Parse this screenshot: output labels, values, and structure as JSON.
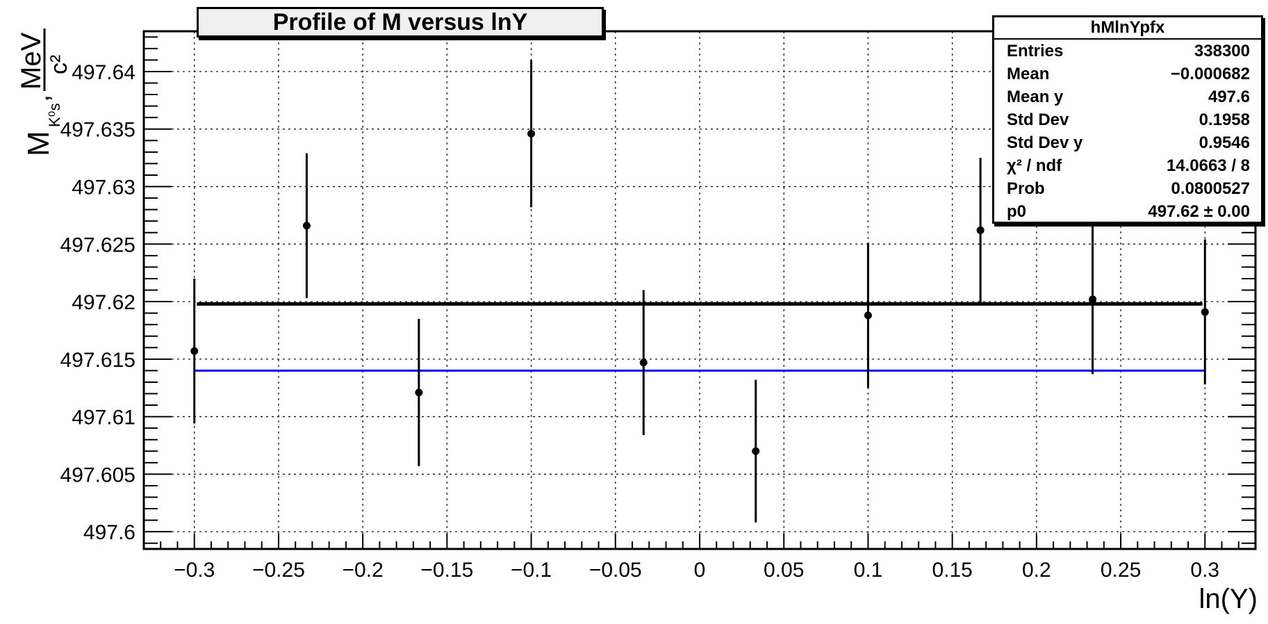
{
  "chart_data": {
    "type": "scatter",
    "title": "Profile of M versus lnY",
    "xlabel": "ln(Y)",
    "ylabel": {
      "main": "M",
      "subscript": "K⁰s",
      "unit_num": "MeV",
      "unit_den": "c²",
      "separator": ","
    },
    "xlim": [
      -0.33,
      0.33
    ],
    "ylim": [
      497.5985,
      497.6435
    ],
    "x_ticks": [
      -0.3,
      -0.25,
      -0.2,
      -0.15,
      -0.1,
      -0.05,
      0,
      0.05,
      0.1,
      0.15,
      0.2,
      0.25,
      0.3
    ],
    "x_tick_labels": [
      "−0.3",
      "−0.25",
      "−0.2",
      "−0.15",
      "−0.1",
      "−0.05",
      "0",
      "0.05",
      "0.1",
      "0.15",
      "0.2",
      "0.25",
      "0.3"
    ],
    "y_ticks": [
      497.6,
      497.605,
      497.61,
      497.615,
      497.62,
      497.625,
      497.63,
      497.635,
      497.64
    ],
    "y_tick_labels": [
      "497.6",
      "497.605",
      "497.61",
      "497.615",
      "497.62",
      "497.625",
      "497.63",
      "497.635",
      "497.64"
    ],
    "grid": true,
    "points": [
      {
        "x": -0.3,
        "y": 497.6157,
        "err": 0.0063
      },
      {
        "x": -0.2333,
        "y": 497.6266,
        "err": 0.0063
      },
      {
        "x": -0.1667,
        "y": 497.6121,
        "err": 0.0064
      },
      {
        "x": -0.1,
        "y": 497.6346,
        "err": 0.0064
      },
      {
        "x": -0.0333,
        "y": 497.6147,
        "err": 0.0063
      },
      {
        "x": 0.0333,
        "y": 497.607,
        "err": 0.0062
      },
      {
        "x": 0.1,
        "y": 497.6188,
        "err": 0.0063
      },
      {
        "x": 0.1667,
        "y": 497.6262,
        "err": 0.0063
      },
      {
        "x": 0.2333,
        "y": 497.6202,
        "err": 0.0065
      },
      {
        "x": 0.3,
        "y": 497.6191,
        "err": 0.0063
      }
    ],
    "fit_line": {
      "y": 497.6198,
      "x_range": [
        -0.2985,
        0.2985
      ],
      "color": "#000000"
    },
    "reference_line": {
      "y": 497.614,
      "x_range": [
        -0.3,
        0.3
      ],
      "color": "#0000ff"
    },
    "stats_box": {
      "name": "hMlnYpfx",
      "rows": [
        {
          "label": "Entries",
          "value": "338300"
        },
        {
          "label": "Mean",
          "value": "−0.000682"
        },
        {
          "label": "Mean y",
          "value": "497.6"
        },
        {
          "label": "Std Dev",
          "value": "0.1958"
        },
        {
          "label": "Std Dev y",
          "value": "0.9546"
        },
        {
          "label": "χ² / ndf",
          "value": "14.0663 / 8"
        },
        {
          "label": "Prob",
          "value": "0.0800527"
        },
        {
          "label": "p0",
          "value": "497.62 ± 0.00"
        }
      ]
    }
  }
}
